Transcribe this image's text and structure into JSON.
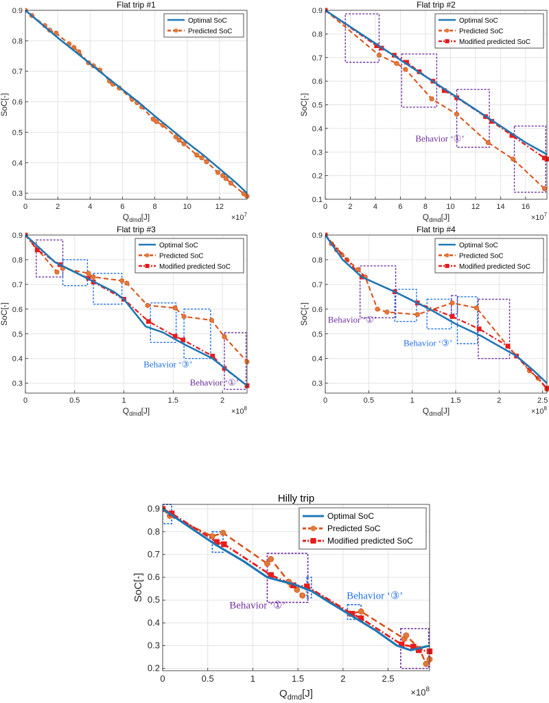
{
  "chart_data": [
    {
      "id": "p1",
      "type": "line",
      "title": "Flat trip #1",
      "ylabel": "SoC[-]",
      "xlabel_main": "Q",
      "xlabel_sub": "dmd",
      "xlabel_unit": "[J]",
      "x_exponent": "×10",
      "x_exponent_power": "7",
      "xlim": [
        0,
        13.7
      ],
      "ylim": [
        0.28,
        0.9
      ],
      "xticks": [
        0,
        2,
        4,
        6,
        8,
        10,
        12
      ],
      "yticks": [
        0.3,
        0.4,
        0.5,
        0.6,
        0.7,
        0.8,
        0.9
      ],
      "legend": [
        "Optimal SoC",
        "Predicted SoC"
      ],
      "series": [
        {
          "name": "Optimal SoC",
          "kind": "optimal",
          "x": [
            0,
            1,
            2,
            3,
            4,
            5,
            6,
            7,
            8,
            9,
            10,
            11,
            12,
            13,
            13.7
          ],
          "y": [
            0.9,
            0.855,
            0.81,
            0.768,
            0.725,
            0.682,
            0.64,
            0.598,
            0.553,
            0.51,
            0.466,
            0.425,
            0.38,
            0.335,
            0.3
          ]
        },
        {
          "name": "Predicted SoC",
          "kind": "predicted",
          "x": [
            0,
            0.4,
            1.2,
            1.5,
            1.9,
            2.7,
            3.0,
            3.3,
            3.9,
            4.2,
            4.6,
            5.2,
            5.4,
            5.8,
            6.6,
            6.9,
            7.2,
            7.9,
            8.1,
            8.5,
            9.3,
            9.5,
            9.8,
            10.6,
            10.9,
            11.2,
            11.9,
            12.2,
            12.4,
            12.7,
            13.5,
            13.7
          ],
          "y": [
            0.9,
            0.883,
            0.85,
            0.835,
            0.825,
            0.79,
            0.778,
            0.764,
            0.728,
            0.718,
            0.704,
            0.668,
            0.658,
            0.645,
            0.608,
            0.597,
            0.583,
            0.543,
            0.535,
            0.523,
            0.485,
            0.474,
            0.462,
            0.425,
            0.416,
            0.403,
            0.368,
            0.358,
            0.348,
            0.333,
            0.298,
            0.29
          ]
        }
      ],
      "annotations": []
    },
    {
      "id": "p2",
      "type": "line",
      "title": "Flat trip #2",
      "ylabel": "SoC[-]",
      "xlabel_main": "Q",
      "xlabel_sub": "dmd",
      "xlabel_unit": "[J]",
      "x_exponent": "×10",
      "x_exponent_power": "7",
      "xlim": [
        0,
        17.7
      ],
      "ylim": [
        0.1,
        0.9
      ],
      "xticks": [
        0,
        2,
        4,
        6,
        8,
        10,
        12,
        14,
        16
      ],
      "yticks": [
        0.1,
        0.2,
        0.3,
        0.4,
        0.5,
        0.6,
        0.7,
        0.8,
        0.9
      ],
      "legend": [
        "Optimal SoC",
        "Predicted SoC",
        "Modified predicted SoC"
      ],
      "series": [
        {
          "name": "Optimal SoC",
          "kind": "optimal",
          "x": [
            0,
            2,
            4,
            6,
            8,
            10,
            12,
            14,
            16,
            17.7
          ],
          "y": [
            0.9,
            0.83,
            0.76,
            0.69,
            0.62,
            0.55,
            0.48,
            0.41,
            0.34,
            0.29
          ]
        },
        {
          "name": "Predicted SoC",
          "kind": "predicted",
          "x": [
            0,
            4.3,
            5.7,
            6.4,
            8.5,
            10.5,
            13,
            15,
            17.5
          ],
          "y": [
            0.9,
            0.71,
            0.675,
            0.65,
            0.525,
            0.46,
            0.34,
            0.27,
            0.145
          ]
        },
        {
          "name": "Modified predicted SoC",
          "kind": "modified",
          "x": [
            0,
            4.1,
            4.5,
            5.5,
            6.5,
            7.5,
            8.6,
            9.5,
            10.5,
            12.8,
            13.3,
            14.9,
            17.5,
            17.7
          ],
          "y": [
            0.9,
            0.75,
            0.74,
            0.71,
            0.68,
            0.64,
            0.6,
            0.56,
            0.53,
            0.45,
            0.43,
            0.37,
            0.275,
            0.27
          ]
        }
      ],
      "annotations": [
        {
          "type": "box",
          "color": "purple",
          "x0": 1.6,
          "x1": 4.3,
          "y0": 0.68,
          "y1": 0.885
        },
        {
          "type": "box",
          "color": "purple",
          "x0": 6.1,
          "x1": 8.9,
          "y0": 0.49,
          "y1": 0.715
        },
        {
          "type": "box",
          "color": "purple",
          "x0": 10.5,
          "x1": 13.1,
          "y0": 0.32,
          "y1": 0.565
        },
        {
          "type": "box",
          "color": "purple",
          "x0": 15.1,
          "x1": 17.6,
          "y0": 0.13,
          "y1": 0.41
        },
        {
          "type": "text",
          "color": "purple",
          "text": "Behavior ‘①’",
          "x": 7.2,
          "y": 0.345
        }
      ]
    },
    {
      "id": "p3",
      "type": "line",
      "title": "Flat trip #3",
      "ylabel": "SoC[-]",
      "xlabel_main": "Q",
      "xlabel_sub": "dmd",
      "xlabel_unit": "[J]",
      "x_exponent": "×10",
      "x_exponent_power": "8",
      "xlim": [
        0,
        2.25
      ],
      "ylim": [
        0.26,
        0.9
      ],
      "xticks": [
        0,
        0.5,
        1,
        1.5,
        2
      ],
      "yticks": [
        0.3,
        0.4,
        0.5,
        0.6,
        0.7,
        0.8,
        0.9
      ],
      "legend": [
        "Optimal SoC",
        "Predicted SoC",
        "Modified predicted SoC"
      ],
      "series": [
        {
          "name": "Optimal SoC",
          "kind": "optimal",
          "x": [
            0,
            0.3,
            0.6,
            0.9,
            1.0,
            1.22,
            1.4,
            1.6,
            1.9,
            2.25
          ],
          "y": [
            0.9,
            0.79,
            0.73,
            0.67,
            0.64,
            0.53,
            0.505,
            0.46,
            0.4,
            0.29
          ]
        },
        {
          "name": "Predicted SoC",
          "kind": "predicted",
          "x": [
            0,
            0.32,
            0.38,
            0.64,
            0.69,
            0.98,
            1.03,
            1.24,
            1.52,
            1.61,
            1.89,
            2.02,
            2.25
          ],
          "y": [
            0.9,
            0.75,
            0.765,
            0.745,
            0.73,
            0.715,
            0.705,
            0.615,
            0.605,
            0.57,
            0.555,
            0.488,
            0.387
          ]
        },
        {
          "name": "Modified predicted SoC",
          "kind": "modified",
          "x": [
            0,
            0.12,
            0.35,
            0.64,
            0.69,
            1.0,
            1.25,
            1.52,
            1.6,
            1.9,
            2.02,
            2.25
          ],
          "y": [
            0.9,
            0.84,
            0.78,
            0.725,
            0.71,
            0.64,
            0.55,
            0.49,
            0.475,
            0.41,
            0.36,
            0.29
          ]
        }
      ],
      "annotations": [
        {
          "type": "box",
          "color": "purple",
          "x0": 0.11,
          "x1": 0.38,
          "y0": 0.73,
          "y1": 0.88
        },
        {
          "type": "box",
          "color": "blue",
          "x0": 0.38,
          "x1": 0.63,
          "y0": 0.695,
          "y1": 0.8
        },
        {
          "type": "box",
          "color": "blue",
          "x0": 0.69,
          "x1": 0.98,
          "y0": 0.62,
          "y1": 0.745
        },
        {
          "type": "box",
          "color": "blue",
          "x0": 1.27,
          "x1": 1.53,
          "y0": 0.465,
          "y1": 0.625
        },
        {
          "type": "box",
          "color": "blue",
          "x0": 1.61,
          "x1": 1.88,
          "y0": 0.4,
          "y1": 0.6
        },
        {
          "type": "box",
          "color": "purple",
          "x0": 2.02,
          "x1": 2.24,
          "y0": 0.275,
          "y1": 0.505
        },
        {
          "type": "text",
          "color": "blue",
          "text": "Behavior ‘③’",
          "x": 1.2,
          "y": 0.365
        },
        {
          "type": "text",
          "color": "purple",
          "text": "Behavior ‘①’",
          "x": 1.67,
          "y": 0.29
        }
      ]
    },
    {
      "id": "p4",
      "type": "line",
      "title": "Flat trip #4",
      "ylabel": "SoC[-]",
      "xlabel_main": "Q",
      "xlabel_sub": "dmd",
      "xlabel_unit": "[J]",
      "x_exponent": "×10",
      "x_exponent_power": "8",
      "xlim": [
        0,
        2.55
      ],
      "ylim": [
        0.26,
        0.9
      ],
      "xticks": [
        0,
        0.5,
        1,
        1.5,
        2,
        2.5
      ],
      "yticks": [
        0.3,
        0.4,
        0.5,
        0.6,
        0.7,
        0.8,
        0.9
      ],
      "legend": [
        "Optimal SoC",
        "Predicted SoC",
        "Modified predicted SoC"
      ],
      "series": [
        {
          "name": "Optimal SoC",
          "kind": "optimal",
          "x": [
            0,
            0.2,
            0.42,
            0.8,
            1.2,
            1.5,
            1.8,
            2.0,
            2.2,
            2.4,
            2.55
          ],
          "y": [
            0.9,
            0.8,
            0.73,
            0.67,
            0.6,
            0.54,
            0.49,
            0.45,
            0.41,
            0.35,
            0.3
          ]
        },
        {
          "name": "Predicted SoC",
          "kind": "predicted",
          "x": [
            0,
            0.07,
            0.13,
            0.19,
            0.25,
            0.38,
            0.46,
            0.6,
            0.71,
            1.06,
            1.46,
            1.74,
            2.1,
            2.35,
            2.45,
            2.55
          ],
          "y": [
            0.9,
            0.865,
            0.84,
            0.82,
            0.8,
            0.76,
            0.73,
            0.6,
            0.588,
            0.578,
            0.625,
            0.605,
            0.45,
            0.35,
            0.32,
            0.275
          ]
        },
        {
          "name": "Modified predicted SoC",
          "kind": "modified",
          "x": [
            0,
            0.42,
            0.8,
            1.06,
            1.46,
            1.77,
            2.1,
            2.2,
            2.55
          ],
          "y": [
            0.9,
            0.73,
            0.67,
            0.625,
            0.57,
            0.52,
            0.45,
            0.41,
            0.28
          ]
        }
      ],
      "annotations": [
        {
          "type": "box",
          "color": "purple",
          "x0": 0.4,
          "x1": 0.81,
          "y0": 0.565,
          "y1": 0.775
        },
        {
          "type": "box",
          "color": "blue",
          "x0": 0.8,
          "x1": 1.05,
          "y0": 0.55,
          "y1": 0.68
        },
        {
          "type": "box",
          "color": "blue",
          "x0": 1.17,
          "x1": 1.45,
          "y0": 0.52,
          "y1": 0.64
        },
        {
          "type": "box",
          "color": "purple",
          "x0": 1.45,
          "x1": 1.52,
          "y0": 0.58,
          "y1": 0.655
        },
        {
          "type": "box",
          "color": "blue",
          "x0": 1.52,
          "x1": 1.75,
          "y0": 0.46,
          "y1": 0.65
        },
        {
          "type": "box",
          "color": "purple",
          "x0": 1.76,
          "x1": 2.12,
          "y0": 0.4,
          "y1": 0.64
        },
        {
          "type": "text",
          "color": "purple",
          "text": "Behavior ‘①’",
          "x": 0.03,
          "y": 0.545
        },
        {
          "type": "text",
          "color": "blue",
          "text": "Behavior ‘③’",
          "x": 0.9,
          "y": 0.45
        }
      ]
    },
    {
      "id": "p5",
      "type": "line",
      "title": "Hilly trip",
      "ylabel": "SoC[-]",
      "xlabel_main": "Q",
      "xlabel_sub": "dmd",
      "xlabel_unit": "[J]",
      "x_exponent": "×10",
      "x_exponent_power": "8",
      "xlim": [
        0,
        2.96
      ],
      "ylim": [
        0.19,
        0.92
      ],
      "xticks": [
        0,
        0.5,
        1,
        1.5,
        2,
        2.5
      ],
      "yticks": [
        0.2,
        0.3,
        0.4,
        0.5,
        0.6,
        0.7,
        0.8,
        0.9
      ],
      "legend": [
        "Optimal SoC",
        "Predicted SoC",
        "Modified predicted SoC"
      ],
      "series": [
        {
          "name": "Optimal SoC",
          "kind": "optimal",
          "x": [
            0,
            0.3,
            0.6,
            0.9,
            1.16,
            1.3,
            1.45,
            1.55,
            1.65,
            1.85,
            2.1,
            2.35,
            2.6,
            2.75,
            2.96
          ],
          "y": [
            0.9,
            0.82,
            0.74,
            0.67,
            0.6,
            0.585,
            0.57,
            0.555,
            0.54,
            0.49,
            0.43,
            0.37,
            0.3,
            0.28,
            0.3
          ]
        },
        {
          "name": "Predicted SoC",
          "kind": "predicted",
          "x": [
            0,
            0.08,
            0.55,
            0.67,
            1.16,
            1.2,
            1.4,
            1.43,
            1.49,
            1.55,
            1.6,
            2.08,
            2.2,
            2.68,
            2.7,
            2.85,
            2.92,
            2.96
          ],
          "y": [
            0.9,
            0.87,
            0.78,
            0.795,
            0.66,
            0.68,
            0.58,
            0.565,
            0.545,
            0.52,
            0.555,
            0.44,
            0.45,
            0.33,
            0.345,
            0.285,
            0.22,
            0.24
          ]
        },
        {
          "name": "Modified predicted SoC",
          "kind": "modified",
          "x": [
            0,
            0.1,
            0.6,
            0.68,
            1.2,
            1.45,
            1.6,
            2.1,
            2.2,
            2.65,
            2.78,
            2.84,
            2.96
          ],
          "y": [
            0.9,
            0.88,
            0.755,
            0.745,
            0.61,
            0.565,
            0.56,
            0.44,
            0.42,
            0.305,
            0.295,
            0.28,
            0.275
          ]
        }
      ],
      "annotations": [
        {
          "type": "box",
          "color": "blue",
          "x0": 0.0,
          "x1": 0.1,
          "y0": 0.835,
          "y1": 0.92
        },
        {
          "type": "box",
          "color": "blue",
          "x0": 0.55,
          "x1": 0.67,
          "y0": 0.71,
          "y1": 0.8
        },
        {
          "type": "box",
          "color": "purple",
          "x0": 1.16,
          "x1": 1.61,
          "y0": 0.49,
          "y1": 0.705
        },
        {
          "type": "box",
          "color": "blue",
          "x0": 1.6,
          "x1": 1.65,
          "y0": 0.51,
          "y1": 0.6
        },
        {
          "type": "box",
          "color": "blue",
          "x0": 2.05,
          "x1": 2.2,
          "y0": 0.415,
          "y1": 0.48
        },
        {
          "type": "box",
          "color": "purple",
          "x0": 2.64,
          "x1": 2.95,
          "y0": 0.2,
          "y1": 0.375
        },
        {
          "type": "text",
          "color": "purple",
          "text": "Behavior ‘①’",
          "x": 0.74,
          "y": 0.463
        },
        {
          "type": "text",
          "color": "blue",
          "text": "Behavior ‘③’",
          "x": 2.04,
          "y": 0.505
        }
      ]
    }
  ],
  "colors": {
    "optimal": "#1f77b4",
    "predicted": "#d95319",
    "predicted_marker": "#e07a3a",
    "modified": "#e81c1c",
    "box_purple": "#7030a0",
    "box_blue": "#1f6fe8",
    "grid": "#e3e3e3",
    "axis": "#262626"
  }
}
